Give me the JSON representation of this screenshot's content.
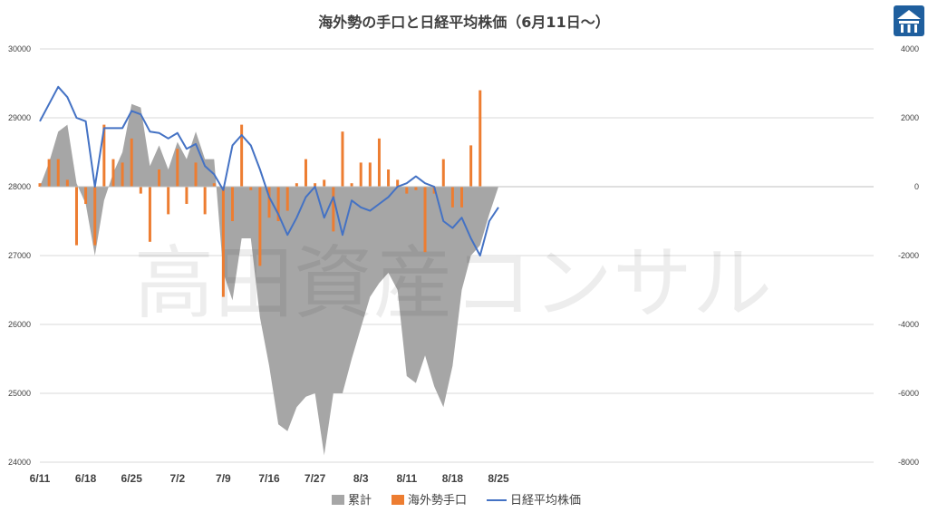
{
  "chart_data": {
    "type": "bar+line+area",
    "title": "海外勢の手口と日経平均株価（6月11日～）",
    "watermark": "高田資産コンサル",
    "logo_icon": "takada-logo-icon",
    "y_left": {
      "min": 24000,
      "max": 30000,
      "ticks": [
        "24000",
        "25000",
        "26000",
        "27000",
        "28000",
        "29000",
        "30000"
      ]
    },
    "y_right": {
      "min": -8000,
      "max": 4000,
      "ticks": [
        "-8000",
        "-6000",
        "-4000",
        "-2000",
        "0",
        "2000",
        "4000"
      ]
    },
    "x_ticks": [
      {
        "label": "6/11",
        "index": 0
      },
      {
        "label": "6/18",
        "index": 5
      },
      {
        "label": "6/25",
        "index": 10
      },
      {
        "label": "7/2",
        "index": 15
      },
      {
        "label": "7/9",
        "index": 20
      },
      {
        "label": "7/16",
        "index": 25
      },
      {
        "label": "7/27",
        "index": 30
      },
      {
        "label": "8/3",
        "index": 35
      },
      {
        "label": "8/11",
        "index": 40
      },
      {
        "label": "8/18",
        "index": 45
      },
      {
        "label": "8/25",
        "index": 50
      }
    ],
    "count": 51,
    "series": [
      {
        "name": "累計",
        "kind": "area",
        "axis": "right",
        "color": "#A6A6A6",
        "values": [
          0,
          700,
          1600,
          1800,
          100,
          -500,
          -2000,
          -400,
          400,
          1000,
          2400,
          2300,
          600,
          1200,
          500,
          1300,
          800,
          1600,
          800,
          800,
          -2500,
          -3300,
          -1500,
          -1500,
          -3800,
          -5200,
          -6900,
          -7100,
          -6400,
          -6100,
          -6000,
          -7800,
          -6000,
          -6000,
          -5000,
          -4100,
          -3200,
          -2800,
          -2500,
          -3000,
          -5500,
          -5700,
          -4900,
          -5800,
          -6400,
          -5200,
          -3000,
          -2000,
          -1700,
          -800,
          0
        ]
      },
      {
        "name": "海外勢手口",
        "kind": "bar",
        "axis": "right",
        "color": "#ED7D31",
        "values": [
          100,
          800,
          800,
          200,
          -1700,
          -500,
          -1700,
          1800,
          800,
          700,
          1400,
          -200,
          -1600,
          500,
          -800,
          1100,
          -500,
          700,
          -800,
          100,
          -3200,
          -1000,
          1800,
          -100,
          -2300,
          -900,
          -1000,
          -700,
          100,
          800,
          100,
          200,
          -1300,
          1600,
          100,
          700,
          700,
          1400,
          500,
          200,
          -200,
          -100,
          -1900,
          -200,
          800,
          -600,
          -600,
          1200,
          2800,
          0,
          0
        ]
      },
      {
        "name": "日経平均株価",
        "kind": "line",
        "axis": "left",
        "color": "#4472C4",
        "values": [
          28950,
          29200,
          29450,
          29300,
          29000,
          28950,
          28000,
          28850,
          28850,
          28850,
          29100,
          29050,
          28800,
          28780,
          28700,
          28780,
          28550,
          28620,
          28300,
          28180,
          27950,
          28600,
          28750,
          28600,
          28250,
          27850,
          27600,
          27300,
          27550,
          27850,
          28000,
          27550,
          27850,
          27300,
          27800,
          27700,
          27650,
          27750,
          27850,
          28000,
          28050,
          28150,
          28050,
          28000,
          27500,
          27400,
          27550,
          27250,
          27000,
          27500,
          27700
        ]
      }
    ],
    "legend": [
      "累計",
      "海外勢手口",
      "日経平均株価"
    ],
    "legend_position": "bottom"
  }
}
